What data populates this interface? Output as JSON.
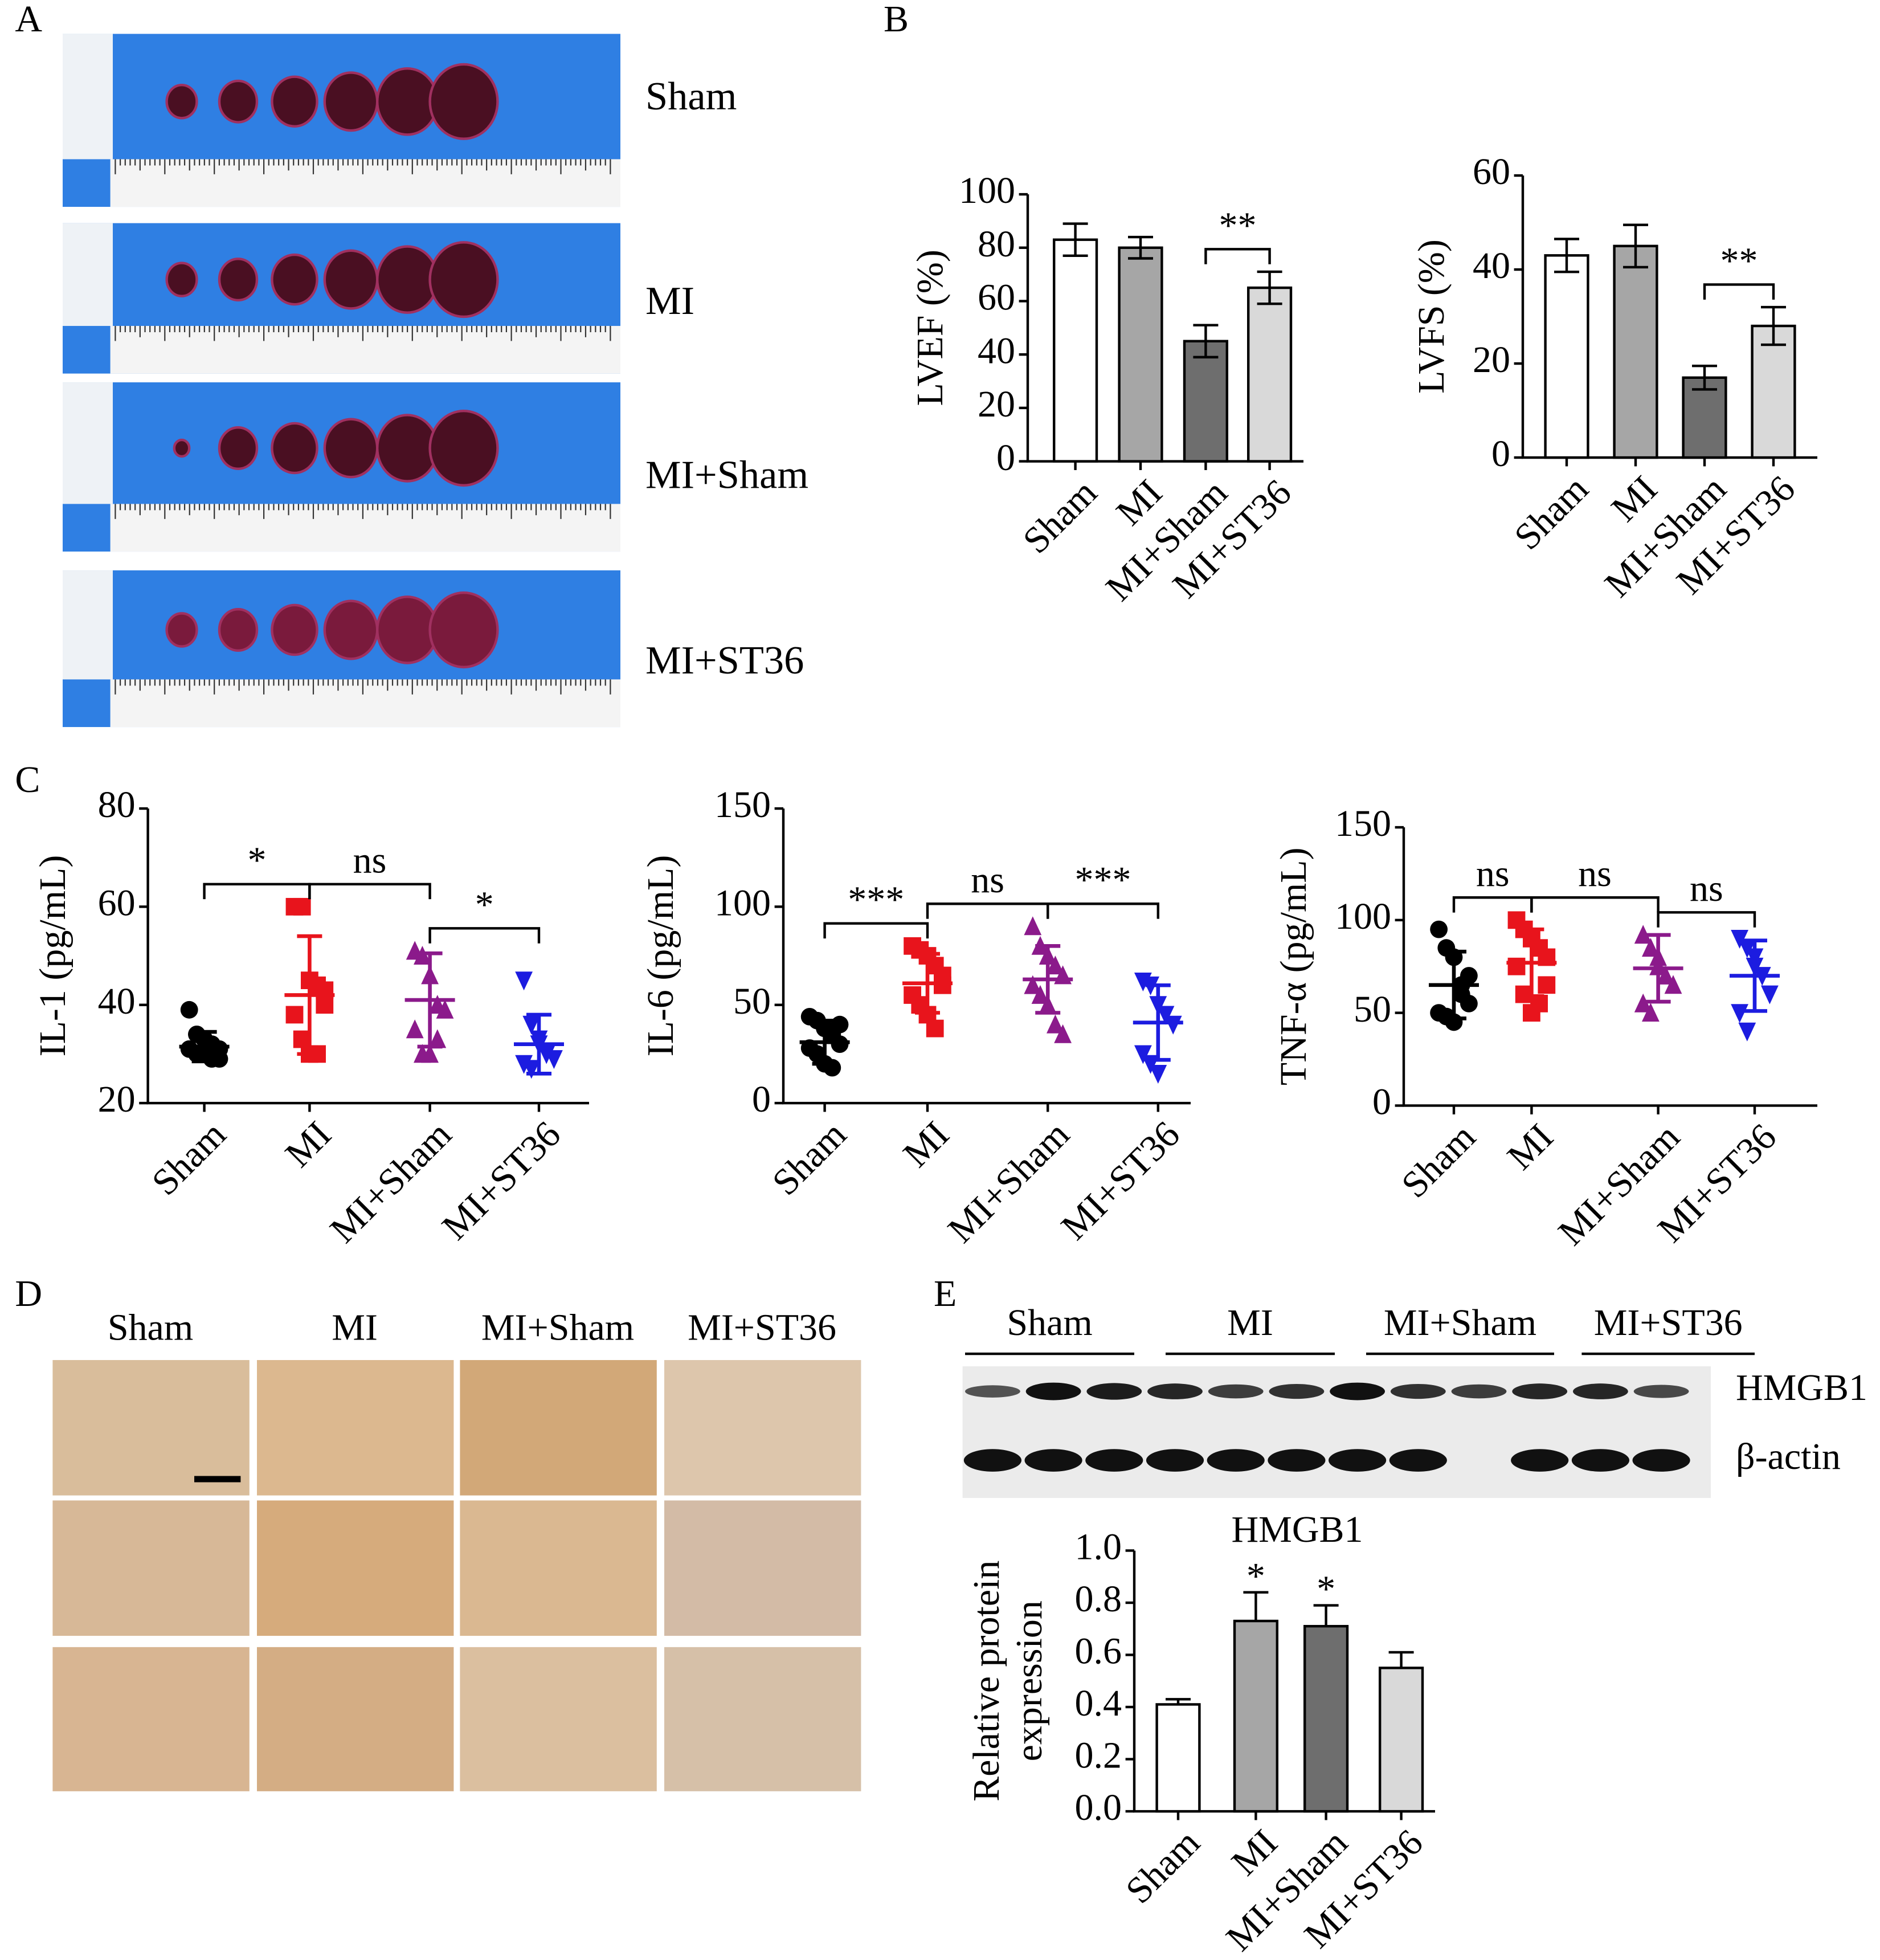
{
  "figure": {
    "panel_labels": [
      "A",
      "B",
      "C",
      "D",
      "E"
    ],
    "photo_labels": [
      "Sham",
      "MI",
      "MI+Sham",
      "MI+ST36"
    ],
    "histology_headers": [
      "Sham",
      "MI",
      "MI+Sham",
      "MI+ST36"
    ],
    "blot": {
      "groups": [
        "Sham",
        "MI",
        "MI+Sham",
        "MI+ST36"
      ],
      "rows": [
        "HMGB1",
        "β-actin"
      ]
    }
  },
  "chart_data": [
    {
      "type": "bar",
      "ylabel": "LVEF (%)",
      "categories": [
        "Sham",
        "MI",
        "MI+Sham",
        "MI+ST36"
      ],
      "values": [
        83,
        80,
        45,
        65
      ],
      "errors": [
        6,
        4,
        6,
        6
      ],
      "error_bars": "both",
      "colors": [
        "#ffffff",
        "#a6a6a6",
        "#6e6e6e",
        "#d9d9d9"
      ],
      "ylim": [
        0,
        100
      ],
      "yticks": [
        0,
        20,
        40,
        60,
        80,
        100
      ],
      "annotations": [
        {
          "between": [
            "MI+Sham",
            "MI+ST36"
          ],
          "text": "**"
        }
      ]
    },
    {
      "type": "bar",
      "ylabel": "LVFS (%)",
      "categories": [
        "Sham",
        "MI",
        "MI+Sham",
        "MI+ST36"
      ],
      "values": [
        43,
        45,
        17,
        28
      ],
      "errors": [
        3.5,
        4.5,
        2.5,
        4
      ],
      "error_bars": "both",
      "colors": [
        "#ffffff",
        "#a6a6a6",
        "#6e6e6e",
        "#d9d9d9"
      ],
      "ylim": [
        0,
        60
      ],
      "yticks": [
        0,
        20,
        40,
        60
      ],
      "annotations": [
        {
          "between": [
            "MI+Sham",
            "MI+ST36"
          ],
          "text": "**"
        }
      ]
    },
    {
      "type": "dot",
      "ylabel": "IL-1 (pg/mL)",
      "categories": [
        "Sham",
        "MI",
        "MI+Sham",
        "MI+ST36"
      ],
      "points": [
        [
          39,
          34,
          33,
          32,
          31,
          31,
          30,
          30,
          29,
          29
        ],
        [
          60,
          60,
          45,
          44,
          40,
          38,
          33,
          30,
          30,
          43
        ],
        [
          51,
          50,
          46,
          40,
          39,
          35,
          30,
          30,
          33
        ],
        [
          45,
          36,
          33,
          30,
          29,
          28,
          27,
          32
        ]
      ],
      "means": [
        31.5,
        42,
        41,
        32
      ],
      "sds": [
        3,
        12,
        9.5,
        6
      ],
      "colors": [
        "#000000",
        "#e8141c",
        "#8b1a8b",
        "#1c1ce0"
      ],
      "markers": [
        "circle",
        "square",
        "triangle-up",
        "triangle-down"
      ],
      "ylim": [
        20,
        80
      ],
      "yticks": [
        20,
        40,
        60,
        80
      ],
      "annotations": [
        {
          "between": [
            "Sham",
            "MI"
          ],
          "text": "*"
        },
        {
          "between": [
            "MI",
            "MI+Sham"
          ],
          "text": "ns"
        },
        {
          "between": [
            "MI+Sham",
            "MI+ST36"
          ],
          "text": "*"
        }
      ]
    },
    {
      "type": "dot",
      "ylabel": "IL-6 (pg/mL)",
      "categories": [
        "Sham",
        "MI",
        "MI+Sham",
        "MI+ST36"
      ],
      "points": [
        [
          44,
          42,
          38,
          35,
          30,
          28,
          25,
          20,
          18,
          40
        ],
        [
          80,
          78,
          75,
          70,
          65,
          55,
          50,
          45,
          38,
          60
        ],
        [
          90,
          80,
          75,
          70,
          65,
          60,
          55,
          50,
          40,
          35
        ],
        [
          62,
          60,
          50,
          45,
          40,
          25,
          20,
          15
        ]
      ],
      "means": [
        31,
        61,
        63,
        41
      ],
      "sds": [
        11,
        15,
        17,
        19
      ],
      "colors": [
        "#000000",
        "#e8141c",
        "#8b1a8b",
        "#1c1ce0"
      ],
      "markers": [
        "circle",
        "square",
        "triangle-up",
        "triangle-down"
      ],
      "ylim": [
        0,
        150
      ],
      "yticks": [
        0,
        50,
        100,
        150
      ],
      "annotations": [
        {
          "between": [
            "Sham",
            "MI"
          ],
          "text": "***"
        },
        {
          "between": [
            "MI",
            "MI+Sham"
          ],
          "text": "ns"
        },
        {
          "between": [
            "MI+Sham",
            "MI+ST36"
          ],
          "text": "***"
        }
      ]
    },
    {
      "type": "dot",
      "ylabel": "TNF-α (pg/mL)",
      "categories": [
        "Sham",
        "MI",
        "MI+Sham",
        "MI+ST36"
      ],
      "points": [
        [
          95,
          85,
          80,
          65,
          55,
          50,
          48,
          45,
          60,
          70
        ],
        [
          100,
          95,
          90,
          85,
          80,
          75,
          60,
          50,
          55,
          65
        ],
        [
          92,
          85,
          75,
          70,
          65,
          55,
          50,
          80
        ],
        [
          90,
          85,
          75,
          70,
          60,
          50,
          40,
          80
        ]
      ],
      "means": [
        65,
        77,
        74,
        70
      ],
      "sds": [
        18,
        18,
        18,
        19
      ],
      "colors": [
        "#000000",
        "#e8141c",
        "#8b1a8b",
        "#1c1ce0"
      ],
      "markers": [
        "circle",
        "square",
        "triangle-up",
        "triangle-down"
      ],
      "ylim": [
        0,
        150
      ],
      "yticks": [
        0,
        50,
        100,
        150
      ],
      "annotations": [
        {
          "between": [
            "Sham",
            "MI"
          ],
          "text": "ns"
        },
        {
          "between": [
            "MI",
            "MI+Sham"
          ],
          "text": "ns"
        },
        {
          "between": [
            "MI+Sham",
            "MI+ST36"
          ],
          "text": "ns"
        }
      ]
    },
    {
      "type": "bar",
      "title": "HMGB1",
      "ylabel": [
        "Relative protein",
        "expression"
      ],
      "categories": [
        "Sham",
        "MI",
        "MI+Sham",
        "MI+ST36"
      ],
      "values": [
        0.41,
        0.73,
        0.71,
        0.55
      ],
      "errors": [
        0.02,
        0.11,
        0.08,
        0.06
      ],
      "error_bars": "up",
      "colors": [
        "#ffffff",
        "#a6a6a6",
        "#6e6e6e",
        "#d9d9d9"
      ],
      "ylim": [
        0,
        1
      ],
      "yticks": [
        {
          "value": 0,
          "label": "0.0"
        },
        0.2,
        0.4,
        0.6,
        0.8,
        {
          "value": 1,
          "label": "1.0"
        }
      ],
      "annotations": [
        {
          "above": "MI",
          "text": "*"
        },
        {
          "above": "MI+Sham",
          "text": "*"
        }
      ]
    }
  ]
}
